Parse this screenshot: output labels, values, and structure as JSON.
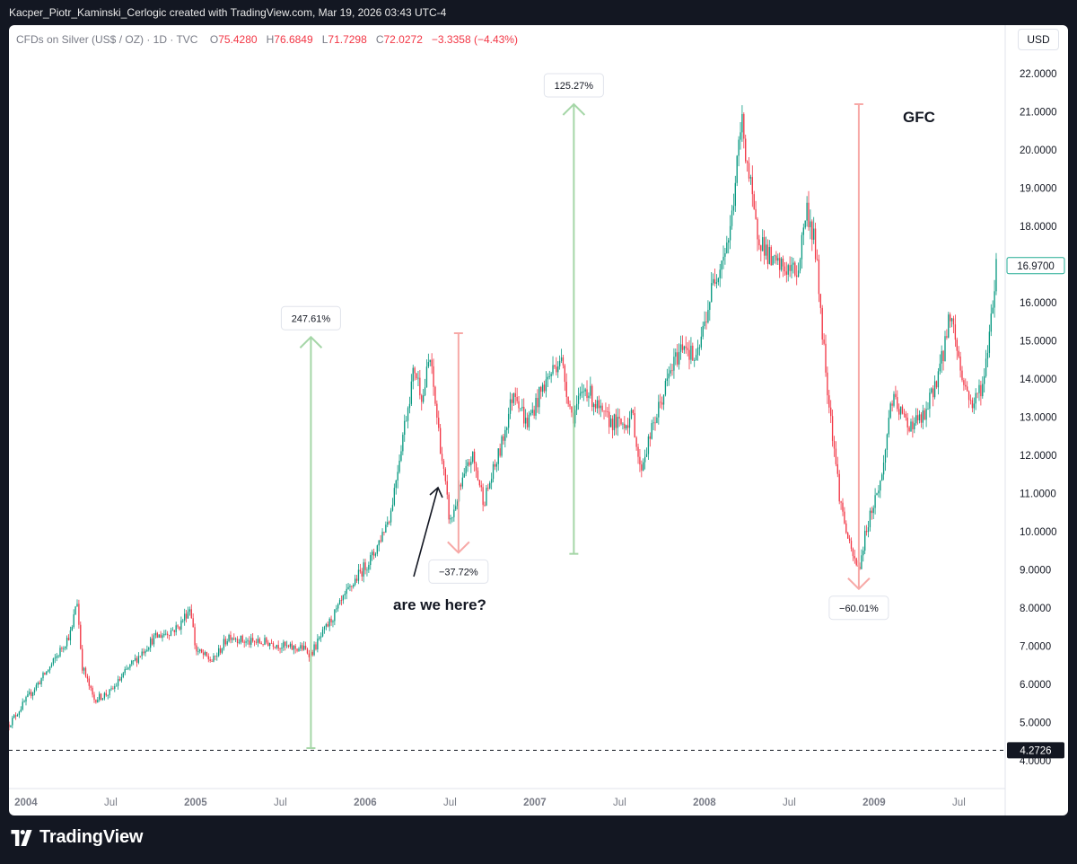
{
  "header": {
    "text": "Kacper_Piotr_Kaminski_Cerlogic created with TradingView.com, Mar 19, 2026 03:43 UTC-4"
  },
  "legend": {
    "symbol": "CFDs on Silver (US$ / OZ) · 1D · TVC",
    "o_key": "O",
    "o_val": "75.4280",
    "h_key": "H",
    "h_val": "76.6849",
    "l_key": "L",
    "l_val": "71.7298",
    "c_key": "C",
    "c_val": "72.0272",
    "change": "−3.3358 (−4.43%)"
  },
  "currency": "USD",
  "footer": {
    "brand": "TradingView"
  },
  "colors": {
    "up": "#089981",
    "down": "#f23645",
    "measure_up": "#a5d6a7",
    "measure_down": "#f7a9a7",
    "last_price": "#22ab94"
  },
  "chart_data": {
    "type": "candlestick",
    "symbol": "CFDs on Silver (US$ / OZ)",
    "interval": "1D",
    "ylim": [
      3.8,
      22.6
    ],
    "y_ticks": [
      "4.0000",
      "5.0000",
      "6.0000",
      "7.0000",
      "8.0000",
      "9.0000",
      "10.0000",
      "11.0000",
      "12.0000",
      "13.0000",
      "14.0000",
      "15.0000",
      "16.0000",
      "17.0000",
      "18.0000",
      "19.0000",
      "20.0000",
      "21.0000",
      "22.0000"
    ],
    "x_ticks": [
      {
        "label": "2004",
        "t": 2004.0,
        "year": true
      },
      {
        "label": "Jul",
        "t": 2004.5,
        "year": false
      },
      {
        "label": "2005",
        "t": 2005.0,
        "year": true
      },
      {
        "label": "Jul",
        "t": 2005.5,
        "year": false
      },
      {
        "label": "2006",
        "t": 2006.0,
        "year": true
      },
      {
        "label": "Jul",
        "t": 2006.5,
        "year": false
      },
      {
        "label": "2007",
        "t": 2007.0,
        "year": true
      },
      {
        "label": "Jul",
        "t": 2007.5,
        "year": false
      },
      {
        "label": "2008",
        "t": 2008.0,
        "year": true
      },
      {
        "label": "Jul",
        "t": 2008.5,
        "year": false
      },
      {
        "label": "2009",
        "t": 2009.0,
        "year": true
      },
      {
        "label": "Jul",
        "t": 2009.5,
        "year": false
      }
    ],
    "price_path": [
      [
        2003.9,
        4.95
      ],
      [
        2004.05,
        5.9
      ],
      [
        2004.15,
        6.5
      ],
      [
        2004.27,
        7.4
      ],
      [
        2004.3,
        8.3
      ],
      [
        2004.33,
        6.5
      ],
      [
        2004.4,
        5.6
      ],
      [
        2004.5,
        5.8
      ],
      [
        2004.6,
        6.4
      ],
      [
        2004.75,
        7.2
      ],
      [
        2004.9,
        7.5
      ],
      [
        2004.97,
        8.05
      ],
      [
        2005.0,
        6.9
      ],
      [
        2005.1,
        6.6
      ],
      [
        2005.2,
        7.3
      ],
      [
        2005.3,
        7.1
      ],
      [
        2005.45,
        7.1
      ],
      [
        2005.55,
        6.95
      ],
      [
        2005.63,
        6.95
      ],
      [
        2005.68,
        6.8
      ],
      [
        2005.8,
        7.7
      ],
      [
        2005.95,
        8.8
      ],
      [
        2006.05,
        9.4
      ],
      [
        2006.15,
        10.5
      ],
      [
        2006.22,
        12.5
      ],
      [
        2006.29,
        14.3
      ],
      [
        2006.34,
        13.5
      ],
      [
        2006.38,
        14.6
      ],
      [
        2006.45,
        12.0
      ],
      [
        2006.5,
        10.2
      ],
      [
        2006.55,
        11.0
      ],
      [
        2006.63,
        12.0
      ],
      [
        2006.7,
        10.8
      ],
      [
        2006.8,
        12.2
      ],
      [
        2006.88,
        13.8
      ],
      [
        2006.95,
        12.8
      ],
      [
        2007.05,
        13.8
      ],
      [
        2007.15,
        14.6
      ],
      [
        2007.22,
        13.0
      ],
      [
        2007.3,
        13.8
      ],
      [
        2007.4,
        13.0
      ],
      [
        2007.5,
        12.8
      ],
      [
        2007.58,
        13.0
      ],
      [
        2007.62,
        11.6
      ],
      [
        2007.7,
        12.8
      ],
      [
        2007.8,
        14.2
      ],
      [
        2007.88,
        15.0
      ],
      [
        2007.95,
        14.4
      ],
      [
        2008.05,
        16.5
      ],
      [
        2008.15,
        17.8
      ],
      [
        2008.22,
        20.8
      ],
      [
        2008.3,
        18.0
      ],
      [
        2008.4,
        17.0
      ],
      [
        2008.55,
        16.8
      ],
      [
        2008.6,
        18.5
      ],
      [
        2008.65,
        17.6
      ],
      [
        2008.72,
        14.0
      ],
      [
        2008.8,
        10.8
      ],
      [
        2008.86,
        9.5
      ],
      [
        2008.91,
        9.0
      ],
      [
        2008.96,
        10.2
      ],
      [
        2009.05,
        11.5
      ],
      [
        2009.1,
        13.5
      ],
      [
        2009.2,
        12.8
      ],
      [
        2009.3,
        13.0
      ],
      [
        2009.4,
        14.5
      ],
      [
        2009.45,
        15.8
      ],
      [
        2009.52,
        14.0
      ],
      [
        2009.58,
        13.3
      ],
      [
        2009.65,
        14.0
      ],
      [
        2009.72,
        16.97
      ]
    ],
    "last_price": "16.9700",
    "baseline_price": "4.2726",
    "measurements": [
      {
        "label": "247.61%",
        "direction": "up",
        "t": 2005.68,
        "from": 4.33,
        "to": 15.1
      },
      {
        "label": "−37.72%",
        "direction": "down",
        "t": 2006.55,
        "from": 15.2,
        "to": 9.45
      },
      {
        "label": "125.27%",
        "direction": "up",
        "t": 2007.23,
        "from": 9.42,
        "to": 21.2
      },
      {
        "label": "−60.01%",
        "direction": "down",
        "t": 2008.91,
        "from": 21.2,
        "to": 8.5
      }
    ],
    "annotations": {
      "question": "are we here?",
      "gfc": "GFC"
    }
  }
}
